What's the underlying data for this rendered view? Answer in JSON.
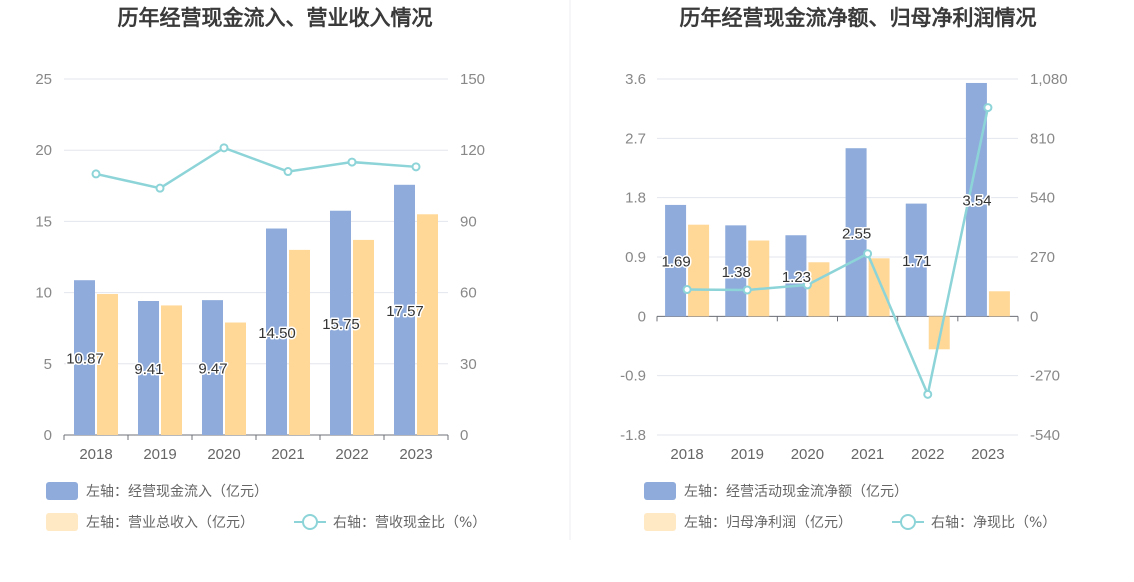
{
  "colors": {
    "bar_primary": "#8eabdb",
    "bar_secondary": "#ffd898",
    "line": "#8dd4d8",
    "grid": "#e3e6ee",
    "legend_bar_secondary": "#ffe8c4"
  },
  "chart_data": [
    {
      "type": "bar",
      "title": "历年经营现金流入、营业收入情况",
      "categories": [
        "2018",
        "2019",
        "2020",
        "2021",
        "2022",
        "2023"
      ],
      "left_axis": {
        "ticks": [
          "0",
          "5",
          "10",
          "15",
          "20",
          "25"
        ],
        "ylim": [
          0,
          25
        ]
      },
      "right_axis": {
        "ticks": [
          "0",
          "30",
          "60",
          "90",
          "120",
          "150"
        ],
        "ylim": [
          0,
          150
        ]
      },
      "series": [
        {
          "name": "左轴：经营现金流入（亿元）",
          "kind": "bar",
          "axis": "left",
          "values": [
            10.87,
            9.41,
            9.47,
            14.5,
            15.75,
            17.57
          ],
          "labels": [
            "10.87",
            "9.41",
            "9.47",
            "14.50",
            "15.75",
            "17.57"
          ]
        },
        {
          "name": "左轴：营业总收入（亿元）",
          "kind": "bar",
          "axis": "left",
          "values": [
            9.9,
            9.1,
            7.9,
            13.0,
            13.7,
            15.5
          ]
        },
        {
          "name": "右轴：营收现金比（%）",
          "kind": "line",
          "axis": "right",
          "values": [
            110,
            104,
            121,
            111,
            115,
            113
          ]
        }
      ],
      "grid": true,
      "legend_position": "bottom-left"
    },
    {
      "type": "bar",
      "title": "历年经营现金流净额、归母净利润情况",
      "categories": [
        "2018",
        "2019",
        "2020",
        "2021",
        "2022",
        "2023"
      ],
      "left_axis": {
        "ticks": [
          "-1.8",
          "-0.9",
          "0",
          "0.9",
          "1.8",
          "2.7",
          "3.6"
        ],
        "ylim": [
          -1.8,
          3.6
        ]
      },
      "right_axis": {
        "ticks": [
          "-540",
          "-270",
          "0",
          "270",
          "540",
          "810",
          "1,080"
        ],
        "ylim": [
          -540,
          1080
        ]
      },
      "series": [
        {
          "name": "左轴：经营活动现金流净额（亿元）",
          "kind": "bar",
          "axis": "left",
          "values": [
            1.69,
            1.38,
            1.23,
            2.55,
            1.71,
            3.54
          ],
          "labels": [
            "1.69",
            "1.38",
            "1.23",
            "2.55",
            "1.71",
            "3.54"
          ]
        },
        {
          "name": "左轴：归母净利润（亿元）",
          "kind": "bar",
          "axis": "left",
          "values": [
            1.39,
            1.15,
            0.82,
            0.88,
            -0.5,
            0.38
          ]
        },
        {
          "name": "右轴：净现比（%）",
          "kind": "line",
          "axis": "right",
          "values": [
            122,
            120,
            143,
            285,
            -355,
            950
          ]
        }
      ],
      "grid": true,
      "legend_position": "bottom-left"
    }
  ]
}
